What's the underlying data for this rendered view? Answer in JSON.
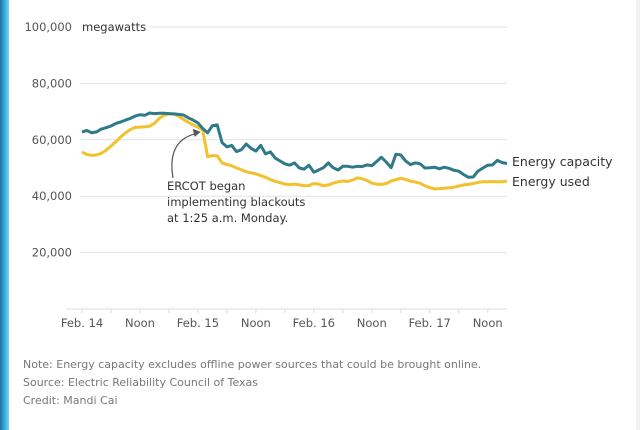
{
  "chart_data": {
    "type": "line",
    "ylabel_unit": "megawatts",
    "ylim": [
      0,
      100000
    ],
    "yticks": [
      {
        "value": 100000,
        "label": "100,000"
      },
      {
        "value": 80000,
        "label": "80,000"
      },
      {
        "value": 60000,
        "label": "60,000"
      },
      {
        "value": 40000,
        "label": "40,000"
      },
      {
        "value": 20000,
        "label": "20,000"
      }
    ],
    "x_unit": "hours since Feb. 14 midnight",
    "xlim": [
      0,
      88
    ],
    "xticks": [
      {
        "value": 0,
        "label": "Feb. 14"
      },
      {
        "value": 12,
        "label": "Noon"
      },
      {
        "value": 24,
        "label": "Feb. 15"
      },
      {
        "value": 36,
        "label": "Noon"
      },
      {
        "value": 48,
        "label": "Feb. 16"
      },
      {
        "value": 60,
        "label": "Noon"
      },
      {
        "value": 72,
        "label": "Feb. 17"
      },
      {
        "value": 84,
        "label": "Noon"
      }
    ],
    "grid": true,
    "legend": "right-end labels",
    "series": [
      {
        "name": "Energy capacity",
        "color": "#2f7a8a",
        "x": [
          0,
          1,
          2,
          3,
          4,
          5,
          6,
          7,
          8,
          9,
          10,
          11,
          12,
          13,
          14,
          15,
          16,
          17,
          18,
          19,
          20,
          21,
          22,
          23,
          24,
          25,
          26,
          27,
          28,
          29,
          30,
          31,
          32,
          33,
          34,
          35,
          36,
          37,
          38,
          39,
          40,
          41,
          42,
          43,
          44,
          45,
          46,
          47,
          48,
          49,
          50,
          51,
          52,
          53,
          54,
          55,
          56,
          57,
          58,
          59,
          60,
          61,
          62,
          63,
          64,
          65,
          66,
          67,
          68,
          69,
          70,
          71,
          72,
          73,
          74,
          75,
          76,
          77,
          78,
          79,
          80,
          81,
          82,
          83,
          84,
          85,
          86,
          87,
          88
        ],
        "values": [
          62800,
          63300,
          62500,
          62800,
          63800,
          64300,
          64900,
          65800,
          66300,
          67000,
          67600,
          68400,
          68900,
          68700,
          69500,
          69300,
          69400,
          69400,
          69300,
          69200,
          69000,
          68800,
          67800,
          67000,
          66000,
          64000,
          62500,
          65000,
          65300,
          59000,
          57500,
          58000,
          55800,
          56500,
          58500,
          57000,
          56000,
          58000,
          55000,
          55700,
          53500,
          52500,
          51500,
          51000,
          51800,
          50000,
          49600,
          51000,
          48500,
          49300,
          50100,
          51800,
          50100,
          49300,
          50600,
          50600,
          50300,
          50600,
          50500,
          51100,
          50800,
          52300,
          53800,
          52100,
          50100,
          54900,
          54600,
          52500,
          51200,
          51800,
          51500,
          50000,
          50100,
          50300,
          49700,
          50300,
          49900,
          49200,
          48900,
          47700,
          46700,
          46800,
          48900,
          50000,
          51000,
          51100,
          52700,
          51900,
          51600
        ],
        "end_label": "Energy capacity"
      },
      {
        "name": "Energy used",
        "color": "#f2c12e",
        "x": [
          0,
          1,
          2,
          3,
          4,
          5,
          6,
          7,
          8,
          9,
          10,
          11,
          12,
          13,
          14,
          15,
          16,
          17,
          18,
          19,
          20,
          21,
          22,
          23,
          24,
          25,
          26,
          27,
          28,
          29,
          30,
          31,
          32,
          33,
          34,
          35,
          36,
          37,
          38,
          39,
          40,
          41,
          42,
          43,
          44,
          45,
          46,
          47,
          48,
          49,
          50,
          51,
          52,
          53,
          54,
          55,
          56,
          57,
          58,
          59,
          60,
          61,
          62,
          63,
          64,
          65,
          66,
          67,
          68,
          69,
          70,
          71,
          72,
          73,
          74,
          75,
          76,
          77,
          78,
          79,
          80,
          81,
          82,
          83,
          84,
          85,
          86,
          87,
          88
        ],
        "values": [
          55700,
          54800,
          54500,
          54600,
          55200,
          56300,
          57800,
          59300,
          61000,
          62500,
          63600,
          64400,
          64500,
          64600,
          64800,
          65800,
          67600,
          68700,
          69200,
          69100,
          68400,
          67300,
          66200,
          65300,
          64500,
          63500,
          54000,
          54400,
          54300,
          51800,
          51200,
          50800,
          50000,
          49400,
          48700,
          48300,
          47900,
          47300,
          46700,
          45900,
          45300,
          44800,
          44300,
          44100,
          44300,
          44000,
          43700,
          43800,
          44500,
          44300,
          43700,
          44000,
          44600,
          45100,
          45400,
          45200,
          45700,
          46500,
          46200,
          45600,
          44600,
          44300,
          44200,
          44500,
          45400,
          45900,
          46400,
          45900,
          45400,
          45000,
          44600,
          43700,
          43100,
          42600,
          42700,
          42800,
          43000,
          43200,
          43600,
          44000,
          44200,
          44500,
          44900,
          45100,
          45100,
          45200,
          45100,
          45100,
          45400
        ],
        "end_label": "Energy used"
      }
    ],
    "annotation": {
      "lines": [
        "ERCOT began",
        "implementing blackouts",
        "at 1:25 a.m. Monday."
      ],
      "target_x": 25.4,
      "target_y": 63500
    }
  },
  "footer": {
    "note": "Note: Energy capacity excludes offline power sources that could be brought online.",
    "source": "Source: Electric Reliability Council of Texas",
    "credit": "Credit: Mandi Cai"
  }
}
